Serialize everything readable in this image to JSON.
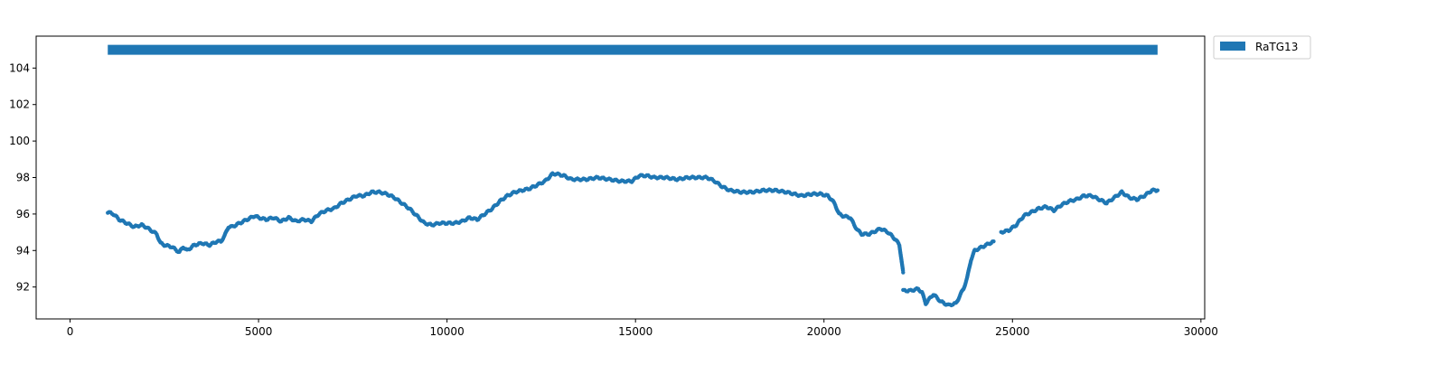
{
  "chart_data": {
    "type": "scatter",
    "title": "",
    "xlabel": "",
    "ylabel": "",
    "xlim": [
      -900,
      30100
    ],
    "ylim": [
      90.25,
      105.75
    ],
    "grid": false,
    "legend_placement": "outside-top-right",
    "x_ticks": [
      0,
      5000,
      10000,
      15000,
      20000,
      25000,
      30000
    ],
    "x_tick_labels": [
      "0",
      "5000",
      "10000",
      "15000",
      "20000",
      "25000",
      "30000"
    ],
    "y_ticks": [
      92,
      94,
      96,
      98,
      100,
      102,
      104
    ],
    "y_tick_labels": [
      "92",
      "94",
      "96",
      "98",
      "100",
      "102",
      "104"
    ],
    "legend": [
      {
        "label": "RaTG13",
        "color": "#1f77b4"
      }
    ],
    "coverage_bar": {
      "series": "RaTG13",
      "y": 105,
      "x_start": 1000,
      "x_end": 28850,
      "color": "#1f77b4"
    },
    "series": [
      {
        "name": "RaTG13",
        "color": "#1f77b4",
        "x": [
          1000,
          1150,
          1300,
          1500,
          1700,
          1900,
          2000,
          2150,
          2300,
          2400,
          2500,
          2700,
          2900,
          3000,
          3100,
          3300,
          3500,
          3700,
          3900,
          4000,
          4100,
          4200,
          4300,
          4500,
          4700,
          4900,
          5000,
          5200,
          5400,
          5600,
          5800,
          6000,
          6200,
          6400,
          6600,
          6800,
          7000,
          7200,
          7400,
          7600,
          7800,
          8000,
          8200,
          8400,
          8600,
          8800,
          9000,
          9200,
          9400,
          9600,
          9800,
          10000,
          10200,
          10400,
          10600,
          10800,
          11000,
          11200,
          11400,
          11600,
          11800,
          12000,
          12200,
          12400,
          12600,
          12800,
          12900,
          13100,
          13300,
          13500,
          13700,
          14000,
          14300,
          14600,
          14900,
          15100,
          15300,
          15500,
          15800,
          16100,
          16400,
          16700,
          16900,
          17100,
          17300,
          17500,
          17800,
          18100,
          18400,
          18700,
          19000,
          19200,
          19400,
          19700,
          19900,
          20100,
          20200,
          20300,
          20400,
          20500,
          20700,
          20800,
          20900,
          21000,
          21200,
          21400,
          21500,
          21700,
          21900,
          22000,
          22050,
          22100
        ],
        "y": [
          96.1,
          96.0,
          95.7,
          95.5,
          95.3,
          95.4,
          95.3,
          95.1,
          94.9,
          94.4,
          94.3,
          94.2,
          93.9,
          94.2,
          94.0,
          94.3,
          94.4,
          94.3,
          94.5,
          94.5,
          94.8,
          95.3,
          95.3,
          95.5,
          95.7,
          95.9,
          95.8,
          95.7,
          95.8,
          95.6,
          95.8,
          95.6,
          95.7,
          95.6,
          96.0,
          96.2,
          96.3,
          96.6,
          96.8,
          97.0,
          97.0,
          97.2,
          97.2,
          97.1,
          96.9,
          96.6,
          96.3,
          95.9,
          95.5,
          95.4,
          95.5,
          95.5,
          95.5,
          95.6,
          95.8,
          95.7,
          96.0,
          96.3,
          96.7,
          97.0,
          97.2,
          97.3,
          97.4,
          97.6,
          97.8,
          98.2,
          98.2,
          98.1,
          97.9,
          97.9,
          97.9,
          98.0,
          97.9,
          97.8,
          97.8,
          98.1,
          98.1,
          98.0,
          98.0,
          97.9,
          98.0,
          98.0,
          98.0,
          97.8,
          97.5,
          97.3,
          97.2,
          97.2,
          97.3,
          97.3,
          97.2,
          97.1,
          97.0,
          97.1,
          97.1,
          97.0,
          96.8,
          96.5,
          96.0,
          95.9,
          95.8,
          95.4,
          95.1,
          94.9,
          94.9,
          95.1,
          95.2,
          95.0,
          94.6,
          94.3,
          93.6,
          92.8
        ]
      },
      {
        "name": "RaTG13",
        "color": "#1f77b4",
        "x": [
          22100,
          22300,
          22500,
          22600,
          22700,
          22900,
          23100,
          23300,
          23500,
          23600,
          23700,
          23800,
          23900,
          24000,
          24100,
          24300,
          24500
        ],
        "y": [
          91.8,
          91.8,
          91.9,
          91.7,
          91.1,
          91.6,
          91.2,
          91.0,
          91.1,
          91.5,
          91.9,
          92.5,
          93.5,
          94.0,
          94.1,
          94.3,
          94.5
        ]
      },
      {
        "name": "RaTG13",
        "color": "#1f77b4",
        "x": [
          24700,
          24900,
          25100,
          25300,
          25500,
          25700,
          25900,
          26100,
          26300,
          26500,
          26700,
          26900,
          27100,
          27300,
          27500,
          27700,
          27900,
          28100,
          28300,
          28500,
          28700,
          28850
        ],
        "y": [
          95.0,
          95.1,
          95.4,
          95.9,
          96.1,
          96.3,
          96.4,
          96.2,
          96.5,
          96.7,
          96.8,
          97.0,
          97.0,
          96.8,
          96.6,
          96.9,
          97.2,
          96.9,
          96.8,
          97.0,
          97.3,
          97.3
        ]
      }
    ]
  }
}
